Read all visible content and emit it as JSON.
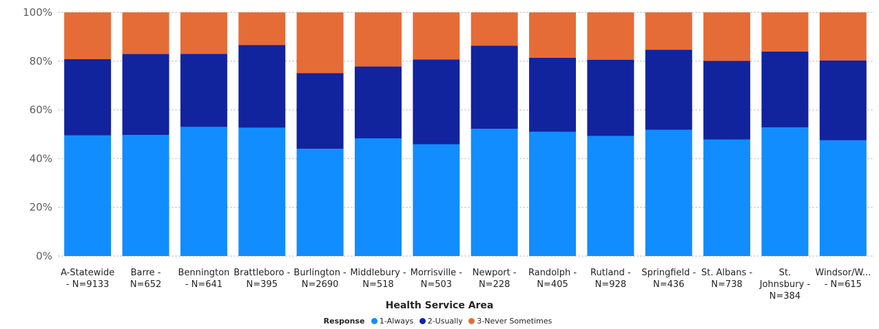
{
  "chart_data": {
    "type": "bar",
    "stacked": true,
    "percent": true,
    "title": "",
    "xlabel": "Health Service Area",
    "ylabel": "",
    "ylim": [
      0,
      100
    ],
    "yticks": [
      "0%",
      "20%",
      "40%",
      "60%",
      "80%",
      "100%"
    ],
    "grid": true,
    "legend_position": "bottom",
    "legend_title": "Response",
    "categories": [
      "A-Statewide - N=9133",
      "Barre - N=652",
      "Bennington - N=641",
      "Brattleboro - N=395",
      "Burlington - N=2690",
      "Middlebury - N=518",
      "Morrisville - N=503",
      "Newport - N=228",
      "Randolph - N=405",
      "Rutland - N=928",
      "Springfield - N=436",
      "St. Albans - N=738",
      "St. Johnsbury - N=384",
      "Windsor/W... - N=615"
    ],
    "category_label_lines": [
      [
        "A-Statewide",
        "- N=9133"
      ],
      [
        "Barre -",
        "N=652"
      ],
      [
        "Bennington",
        "- N=641"
      ],
      [
        "Brattleboro -",
        "N=395"
      ],
      [
        "Burlington -",
        "N=2690"
      ],
      [
        "Middlebury -",
        "N=518"
      ],
      [
        "Morrisville -",
        "N=503"
      ],
      [
        "Newport -",
        "N=228"
      ],
      [
        "Randolph -",
        "N=405"
      ],
      [
        "Rutland -",
        "N=928"
      ],
      [
        "Springfield -",
        "N=436"
      ],
      [
        "St. Albans -",
        "N=738"
      ],
      [
        "St.",
        "Johnsbury -",
        "N=384"
      ],
      [
        "Windsor/W...",
        "- N=615"
      ]
    ],
    "series": [
      {
        "name": "1-Always",
        "color": "#118dff",
        "values": [
          49.5,
          49.7,
          53.0,
          52.7,
          44.0,
          48.3,
          45.9,
          52.2,
          51.0,
          49.3,
          51.8,
          47.8,
          52.8,
          47.5
        ]
      },
      {
        "name": "2-Usually",
        "color": "#12239e",
        "values": [
          31.3,
          33.2,
          30.0,
          33.9,
          31.1,
          29.5,
          34.8,
          34.1,
          30.4,
          31.3,
          32.9,
          32.3,
          31.1,
          32.8
        ]
      },
      {
        "name": "3-Never Sometimes",
        "color": "#e66c37",
        "values": [
          19.2,
          17.1,
          17.0,
          13.4,
          24.9,
          22.2,
          19.3,
          13.7,
          18.6,
          19.4,
          15.3,
          19.9,
          16.1,
          19.7
        ]
      }
    ]
  }
}
